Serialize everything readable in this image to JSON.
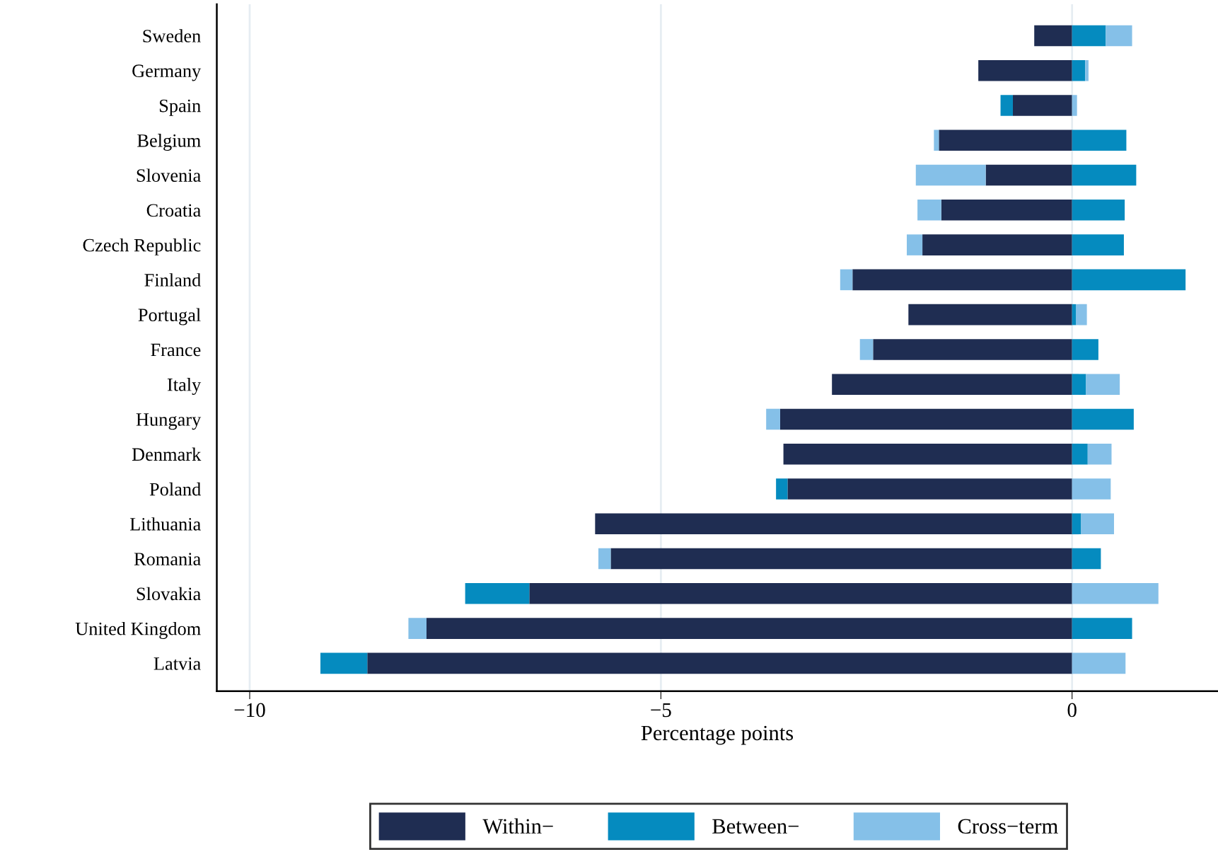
{
  "chart_data": {
    "type": "bar",
    "orientation": "horizontal",
    "stacked": true,
    "xlabel": "Percentage points",
    "categories": [
      "Sweden",
      "Germany",
      "Spain",
      "Belgium",
      "Slovenia",
      "Croatia",
      "Czech Republic",
      "Finland",
      "Portugal",
      "France",
      "Italy",
      "Hungary",
      "Denmark",
      "Poland",
      "Lithuania",
      "Romania",
      "Slovakia",
      "United Kingdom",
      "Latvia"
    ],
    "series": [
      {
        "name": "Within−",
        "color": "#1f2d52",
        "values": [
          -0.46,
          -1.14,
          -0.72,
          -1.62,
          -1.05,
          -1.59,
          -1.82,
          -2.67,
          -1.99,
          -2.42,
          -2.92,
          -3.55,
          -3.51,
          -3.46,
          -5.8,
          -5.61,
          -6.6,
          -7.85,
          -8.57
        ]
      },
      {
        "name": "Between−",
        "color": "#058bbf",
        "values": [
          0.41,
          0.16,
          -0.15,
          0.66,
          0.78,
          0.64,
          0.63,
          1.38,
          0.05,
          0.32,
          0.17,
          0.75,
          0.19,
          -0.14,
          0.11,
          0.35,
          -0.78,
          0.73,
          -0.57
        ]
      },
      {
        "name": "Cross−term",
        "color": "#85c0e8",
        "values": [
          0.32,
          0.04,
          0.06,
          -0.06,
          -0.85,
          -0.29,
          -0.19,
          -0.15,
          0.13,
          -0.16,
          0.41,
          -0.17,
          0.29,
          0.47,
          0.4,
          -0.15,
          1.05,
          -0.22,
          0.65
        ]
      }
    ],
    "xlim": [
      -10.4,
      1.77
    ],
    "xticks": [
      {
        "value": -10,
        "label": "−10"
      },
      {
        "value": -5,
        "label": "−5"
      },
      0
    ],
    "grid": "x",
    "legend": "bottom"
  }
}
